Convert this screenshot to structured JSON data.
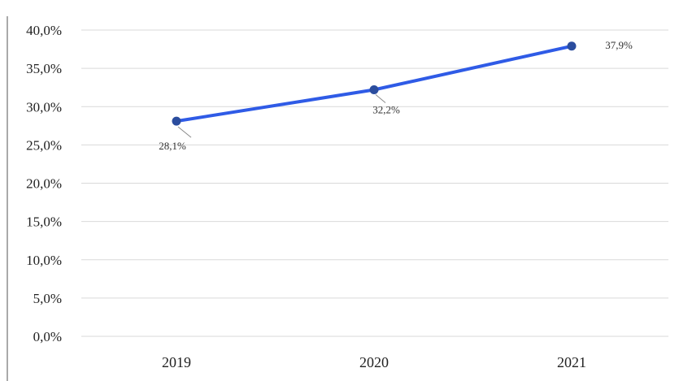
{
  "chart_data": {
    "type": "line",
    "title": "",
    "xlabel": "",
    "ylabel": "",
    "categories": [
      "2019",
      "2020",
      "2021"
    ],
    "series": [
      {
        "values": [
          28.1,
          32.2,
          37.9
        ],
        "labels": [
          "28,1%",
          "32,2%",
          "37,9%"
        ]
      }
    ],
    "y_ticks": [
      {
        "value": 0,
        "label": "0,0%"
      },
      {
        "value": 5,
        "label": "5,0%"
      },
      {
        "value": 10,
        "label": "10,0%"
      },
      {
        "value": 15,
        "label": "15,0%"
      },
      {
        "value": 20,
        "label": "20,0%"
      },
      {
        "value": 25,
        "label": "25,0%"
      },
      {
        "value": 30,
        "label": "30,0%"
      },
      {
        "value": 35,
        "label": "35,0%"
      },
      {
        "value": 40,
        "label": "40,0%"
      }
    ],
    "ylim": [
      0,
      40
    ],
    "grid": true,
    "legend": "none",
    "colors": {
      "line": "#2f5be6",
      "marker": "#2b4d9e",
      "grid": "#d9d9d9"
    }
  }
}
